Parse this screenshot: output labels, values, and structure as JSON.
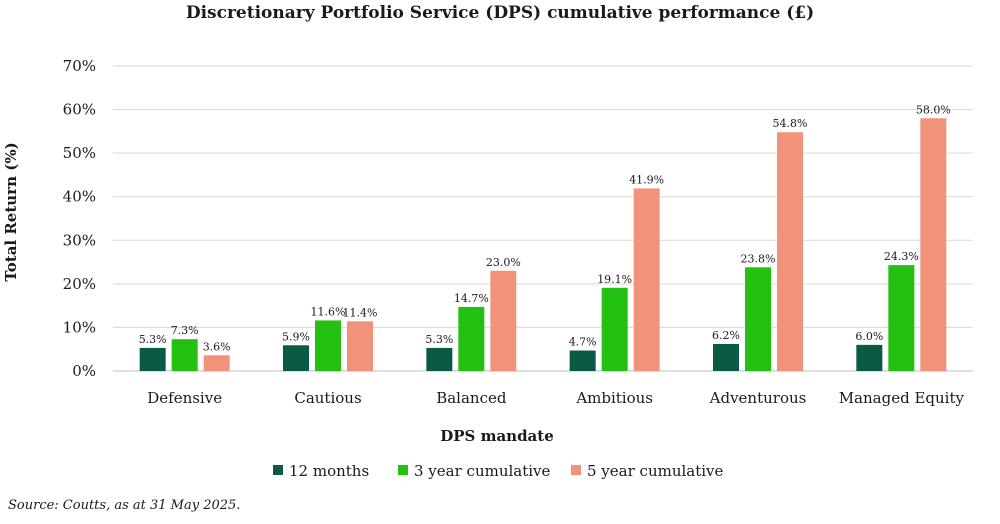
{
  "chart_data": {
    "type": "bar",
    "title": "Discretionary Portfolio Service (DPS) cumulative performance (£)",
    "xlabel": "DPS mandate",
    "ylabel": "Total Return (%)",
    "ylim": [
      0,
      70
    ],
    "yticks": [
      "0%",
      "10%",
      "20%",
      "30%",
      "40%",
      "50%",
      "60%",
      "70%"
    ],
    "grid": true,
    "legend_position": "bottom",
    "categories": [
      "Defensive",
      "Cautious",
      "Balanced",
      "Ambitious",
      "Adventurous",
      "Managed Equity"
    ],
    "series": [
      {
        "name": "12 months",
        "color": "#0b5a45",
        "values": [
          5.3,
          5.9,
          5.3,
          4.7,
          6.2,
          6.0
        ],
        "labels": [
          "5.3%",
          "5.9%",
          "5.3%",
          "4.7%",
          "6.2%",
          "6.0%"
        ]
      },
      {
        "name": "3 year cumulative",
        "color": "#22c010",
        "values": [
          7.3,
          11.6,
          14.7,
          19.1,
          23.8,
          24.3
        ],
        "labels": [
          "7.3%",
          "11.6%",
          "14.7%",
          "19.1%",
          "23.8%",
          "24.3%"
        ]
      },
      {
        "name": "5 year cumulative",
        "color": "#f0937a",
        "values": [
          3.6,
          11.4,
          23.0,
          41.9,
          54.8,
          58.0
        ],
        "labels": [
          "3.6%",
          "11.4%",
          "23.0%",
          "41.9%",
          "54.8%",
          "58.0%"
        ]
      }
    ]
  },
  "source_note": "Source: Coutts, as at 31 May 2025."
}
